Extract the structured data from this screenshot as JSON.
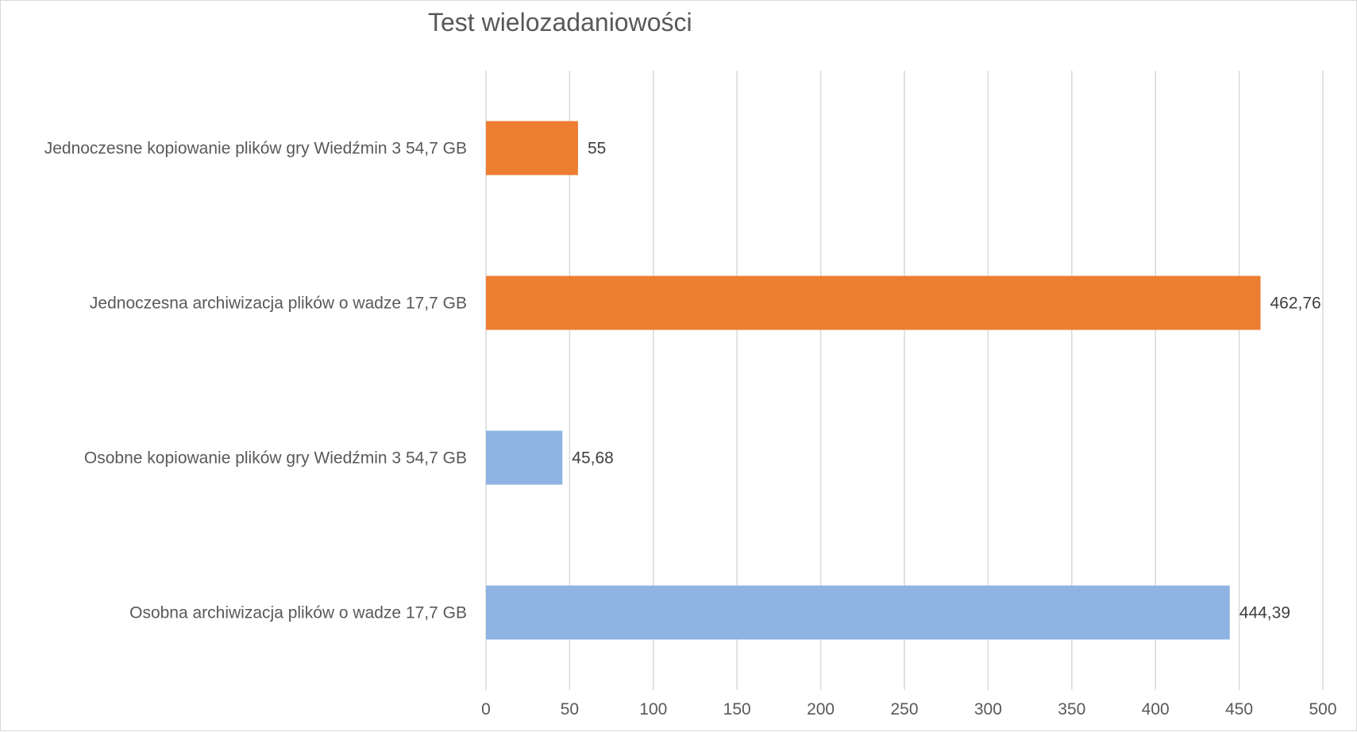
{
  "chart_data": {
    "type": "bar",
    "orientation": "horizontal",
    "title": "Test wielozadaniowości",
    "categories": [
      "Jednoczesne kopiowanie plików gry Wiedźmin 3 54,7 GB",
      "Jednoczesna archiwizacja plików o wadze 17,7 GB",
      "Osobne kopiowanie plików gry Wiedźmin 3 54,7 GB",
      "Osobna archiwizacja plików o wadze 17,7 GB"
    ],
    "values": [
      55,
      462.76,
      45.68,
      444.39
    ],
    "data_labels": [
      "55",
      "462,76",
      "45,68",
      "444,39"
    ],
    "bar_colors": [
      "#ED7D31",
      "#ED7D31",
      "#8FB4E3",
      "#8FB4E3"
    ],
    "xlim": [
      0,
      500
    ],
    "xticks": [
      "0",
      "50",
      "100",
      "150",
      "200",
      "250",
      "300",
      "350",
      "400",
      "450",
      "500"
    ],
    "grid": true,
    "grid_color": "#d9d9d9",
    "legend": "none"
  }
}
